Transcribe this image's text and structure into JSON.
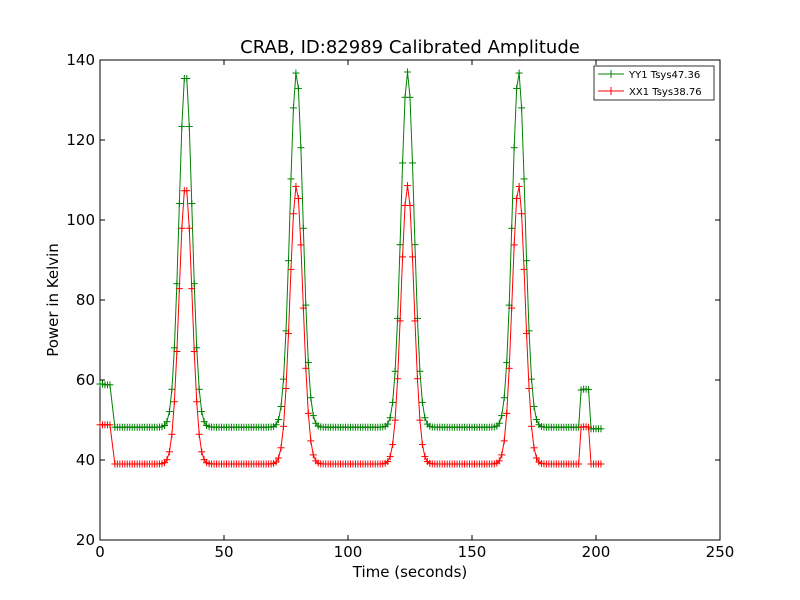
{
  "chart_data": {
    "type": "line",
    "title": "CRAB, ID:82989 Calibrated Amplitude",
    "xlabel": "Time (seconds)",
    "ylabel": "Power in Kelvin",
    "xlim": [
      0,
      250
    ],
    "ylim": [
      20,
      140
    ],
    "xticks": [
      0,
      50,
      100,
      150,
      200,
      250
    ],
    "yticks": [
      20,
      40,
      60,
      80,
      100,
      120,
      140
    ],
    "grid": false,
    "legend_position": "top-right",
    "marker": "+",
    "series": [
      {
        "name": "YY1 Tsys47.36",
        "color": "#008000",
        "baseline": 48.2,
        "peak": 137.0,
        "peak_times": [
          34.5,
          79.2,
          124.0,
          168.8
        ],
        "peak_sigma": 2.6,
        "start_segment": {
          "x": [
            0,
            1,
            2,
            3,
            4
          ],
          "y": [
            59.0,
            59.0,
            58.8,
            58.8,
            58.8
          ]
        },
        "end_segment": {
          "x": [
            194,
            195,
            196,
            197
          ],
          "y": [
            57.5,
            57.7,
            57.7,
            57.6
          ]
        },
        "tail_segment": {
          "x": [
            198,
            199,
            200,
            201,
            202
          ],
          "y": [
            47.8,
            47.8,
            47.8,
            47.8,
            47.8
          ]
        },
        "main_range": [
          6,
          193
        ]
      },
      {
        "name": "XX1 Tsys38.76",
        "color": "#ff0000",
        "baseline": 39.0,
        "peak": 108.6,
        "peak_times": [
          34.5,
          79.2,
          124.0,
          168.8
        ],
        "peak_sigma": 2.6,
        "start_segment": {
          "x": [
            0,
            1,
            2,
            3,
            4
          ],
          "y": [
            48.8,
            48.8,
            48.8,
            48.8,
            48.8
          ]
        },
        "end_segment": {
          "x": [
            194,
            195,
            196,
            197
          ],
          "y": [
            48.2,
            48.3,
            48.3,
            48.2
          ]
        },
        "tail_segment": {
          "x": [
            198,
            199,
            200,
            201,
            202
          ],
          "y": [
            39.0,
            39.0,
            39.0,
            39.0,
            39.0
          ]
        },
        "main_range": [
          6,
          193
        ]
      }
    ]
  }
}
